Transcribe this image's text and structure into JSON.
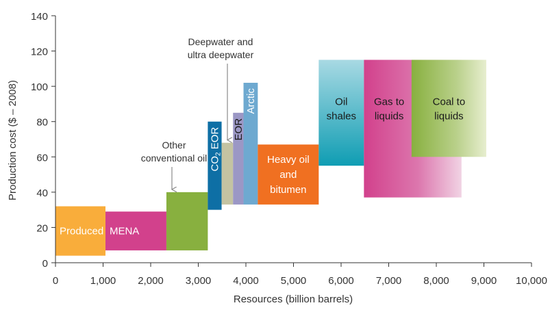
{
  "chart_data": {
    "type": "bar",
    "subtype": "cost-supply-curve (variable-width floating bars)",
    "title": "",
    "xlabel": "Resources (billion barrels)",
    "ylabel": "Production cost ($ – 2008)",
    "xlim": [
      0,
      10000
    ],
    "ylim": [
      0,
      140
    ],
    "xticks": [
      0,
      1000,
      2000,
      3000,
      4000,
      5000,
      6000,
      7000,
      8000,
      9000,
      10000
    ],
    "xtick_labels": [
      "0",
      "1,000",
      "2,000",
      "3,000",
      "4,000",
      "5,000",
      "6,000",
      "7,000",
      "8,000",
      "9,000",
      "10,000"
    ],
    "yticks": [
      0,
      20,
      40,
      60,
      80,
      100,
      120,
      140
    ],
    "ytick_labels": [
      "0",
      "20",
      "40",
      "60",
      "80",
      "100",
      "120",
      "140"
    ],
    "grid": false,
    "legend": "none",
    "bars": [
      {
        "label": "Produced",
        "x0": 0,
        "x1": 1050,
        "y0": 4,
        "y1": 32,
        "color": "#f9ad3b",
        "text_color": "#ffffff",
        "text_position": "inside-left"
      },
      {
        "label": "MENA",
        "x0": 1050,
        "x1": 2330,
        "y0": 7,
        "y1": 29,
        "color": "#d2418c",
        "text_color": "#ffffff",
        "text_position": "inside-left"
      },
      {
        "label": "Other conventional oil",
        "x0": 2330,
        "x1": 3200,
        "y0": 7,
        "y1": 40,
        "color": "#88b03f",
        "text_position": "annotation-above"
      },
      {
        "label": "CO2 EOR",
        "x0": 3200,
        "x1": 3490,
        "y0": 30,
        "y1": 80,
        "color": "#0e6fa5",
        "text_color": "#ffffff",
        "text_position": "inside-vertical"
      },
      {
        "label": "Deepwater and ultra deepwater",
        "x0": 3490,
        "x1": 3730,
        "y0": 33,
        "y1": 68,
        "color": "#c4c3a2",
        "text_position": "annotation-above"
      },
      {
        "label": "EOR",
        "x0": 3730,
        "x1": 3950,
        "y0": 33,
        "y1": 85,
        "color": "#9b97c5",
        "text_color": "#1a1a1a",
        "text_position": "inside-vertical"
      },
      {
        "label": "Arctic",
        "x0": 3950,
        "x1": 4250,
        "y0": 33,
        "y1": 102,
        "color": "#6ea9d0",
        "text_color": "#ffffff",
        "text_position": "inside-vertical"
      },
      {
        "label": "Heavy oil and bitumen",
        "x0": 4250,
        "x1": 5530,
        "y0": 33,
        "y1": 67,
        "color": "#f07021",
        "text_color": "#ffffff",
        "text_position": "inside-center"
      },
      {
        "label": "Oil shales",
        "x0": 5530,
        "x1": 6480,
        "y0": 55,
        "y1": 115,
        "color": "#3db0c3",
        "gradient": "vertical",
        "text_color": "#1a1a1a",
        "text_position": "inside-top"
      },
      {
        "label": "Gas to liquids",
        "x0": 6480,
        "x1": 8530,
        "y0": 37,
        "y1": 115,
        "color": "#d2418c",
        "gradient": "horizontal",
        "text_color": "#1a1a1a",
        "text_position": "inside-top"
      },
      {
        "label": "Coal to liquids",
        "x0": 7480,
        "x1": 9050,
        "y0": 60,
        "y1": 115,
        "color": "#88b03f",
        "gradient": "horizontal",
        "text_color": "#1a1a1a",
        "text_position": "inside-top"
      }
    ],
    "annotations": [
      {
        "text": "Other conventional oil",
        "lines": [
          "Other",
          "conventional oil"
        ],
        "arrow_to_bar": "Other conventional oil"
      },
      {
        "text": "Deepwater and ultra deepwater",
        "lines": [
          "Deepwater and",
          "ultra deepwater"
        ],
        "arrow_to_bar": "Deepwater and ultra deepwater"
      }
    ]
  }
}
